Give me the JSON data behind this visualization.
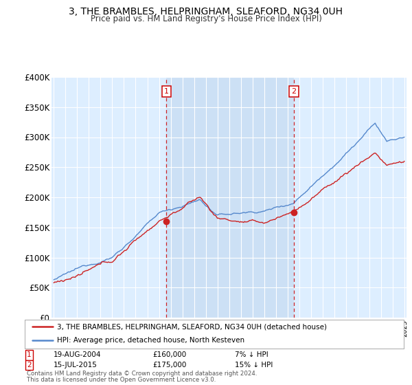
{
  "title": "3, THE BRAMBLES, HELPRINGHAM, SLEAFORD, NG34 0UH",
  "subtitle": "Price paid vs. HM Land Registry's House Price Index (HPI)",
  "hpi_color": "#5588cc",
  "price_color": "#cc2222",
  "background_color": "#ffffff",
  "plot_bg_color": "#ddeeff",
  "shade_color": "#cce0f5",
  "ylim": [
    0,
    400000
  ],
  "yticks": [
    0,
    50000,
    100000,
    150000,
    200000,
    250000,
    300000,
    350000,
    400000
  ],
  "ytick_labels": [
    "£0",
    "£50K",
    "£100K",
    "£150K",
    "£200K",
    "£250K",
    "£300K",
    "£350K",
    "£400K"
  ],
  "xstart": 1995,
  "xend": 2025,
  "transaction1": {
    "label": "1",
    "date": "19-AUG-2004",
    "price": 160000,
    "pct": "7%",
    "direction": "↓",
    "year": 2004.63
  },
  "transaction2": {
    "label": "2",
    "date": "15-JUL-2015",
    "price": 175000,
    "pct": "15%",
    "direction": "↓",
    "year": 2015.54
  },
  "legend_label_red": "3, THE BRAMBLES, HELPRINGHAM, SLEAFORD, NG34 0UH (detached house)",
  "legend_label_blue": "HPI: Average price, detached house, North Kesteven",
  "footer1": "Contains HM Land Registry data © Crown copyright and database right 2024.",
  "footer2": "This data is licensed under the Open Government Licence v3.0."
}
